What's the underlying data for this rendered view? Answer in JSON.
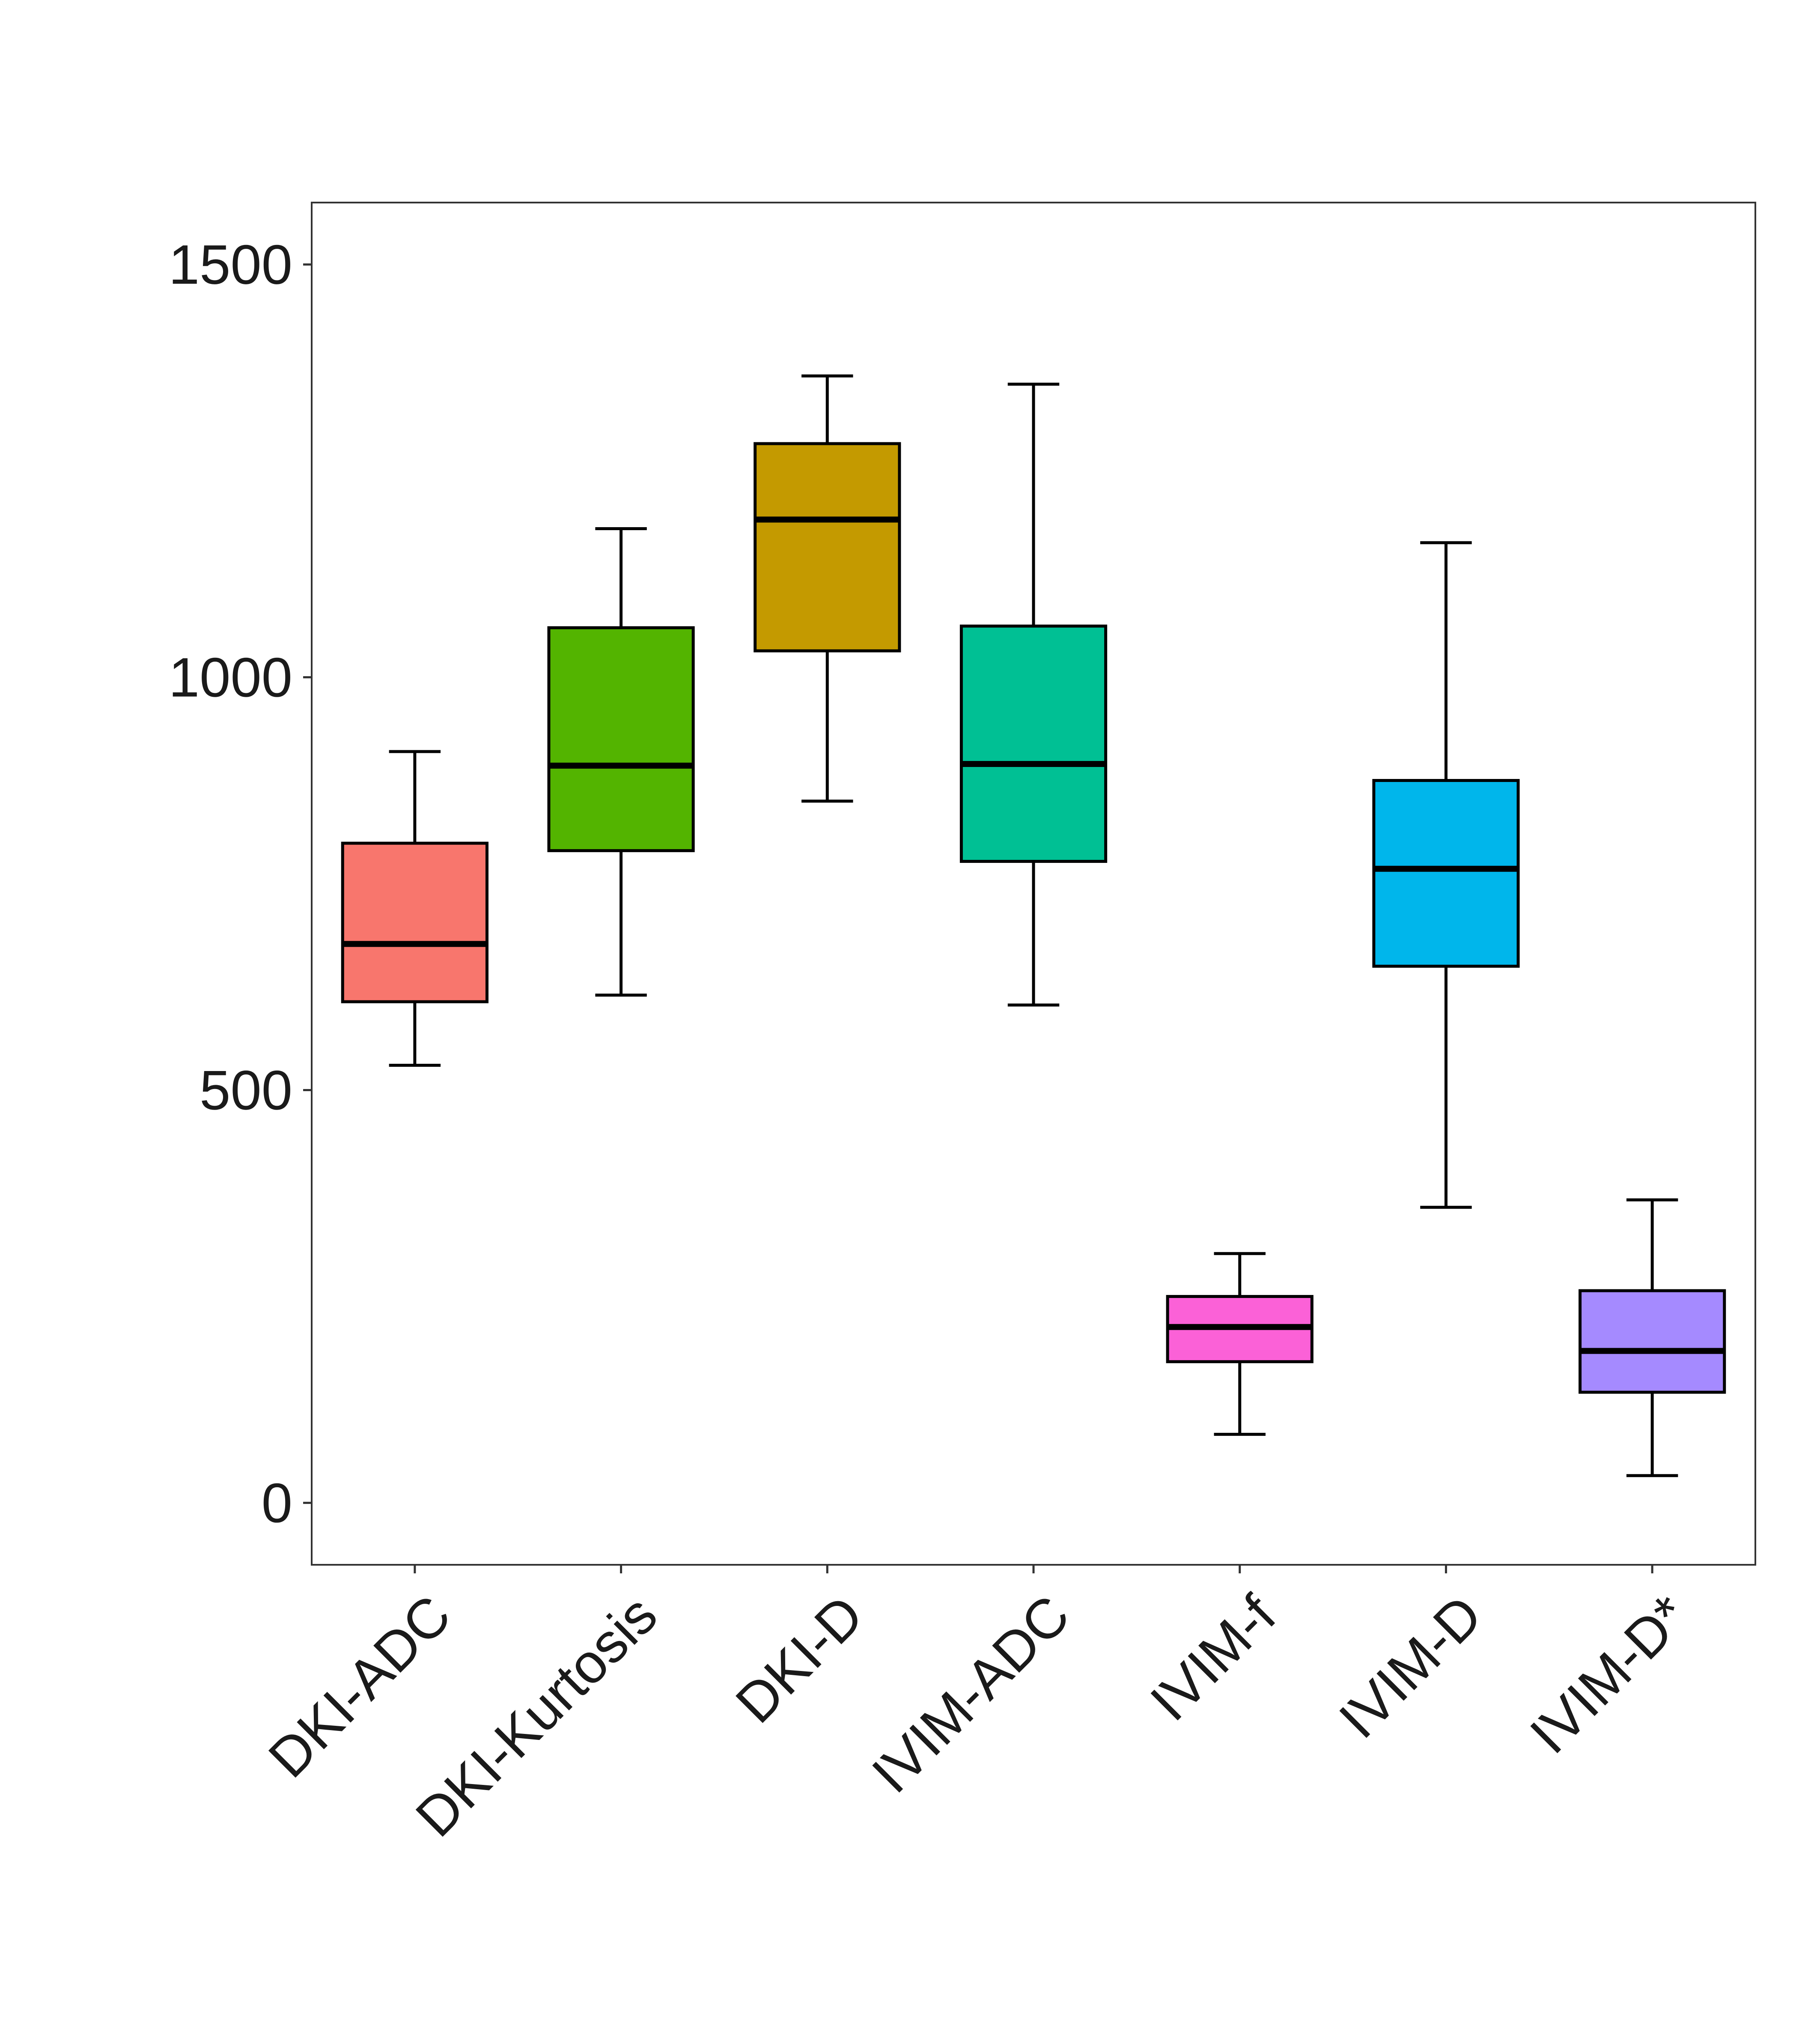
{
  "chart_data": {
    "type": "boxplot",
    "title": "",
    "xlabel": "",
    "ylabel": "",
    "ylim": [
      -75,
      1575
    ],
    "y_ticks": [
      0,
      500,
      1000,
      1500
    ],
    "y_tick_labels": [
      "0",
      "500",
      "1000",
      "1500"
    ],
    "grid": false,
    "legend": "none",
    "categories": [
      "DKI-ADC",
      "DKI-Kurtosis",
      "DKI-D",
      "IVIM-ADC",
      "IVIM-f",
      "IVIM-D",
      "IVIM-D*"
    ],
    "boxes": [
      {
        "name": "DKI-ADC",
        "whisker_low": 530,
        "q1": 607,
        "median": 677,
        "q3": 799,
        "whisker_high": 910,
        "color": "#F8766D"
      },
      {
        "name": "DKI-Kurtosis",
        "whisker_low": 615,
        "q1": 790,
        "median": 893,
        "q3": 1060,
        "whisker_high": 1180,
        "color": "#53B400"
      },
      {
        "name": "DKI-D",
        "whisker_low": 850,
        "q1": 1032,
        "median": 1191,
        "q3": 1283,
        "whisker_high": 1365,
        "color": "#C49A00"
      },
      {
        "name": "IVIM-ADC",
        "whisker_low": 603,
        "q1": 777,
        "median": 895,
        "q3": 1062,
        "whisker_high": 1355,
        "color": "#00C094"
      },
      {
        "name": "IVIM-f",
        "whisker_low": 83,
        "q1": 171,
        "median": 213,
        "q3": 250,
        "whisker_high": 302,
        "color": "#FB61D7"
      },
      {
        "name": "IVIM-D",
        "whisker_low": 358,
        "q1": 650,
        "median": 768,
        "q3": 875,
        "whisker_high": 1163,
        "color": "#00B6EB"
      },
      {
        "name": "IVIM-D*",
        "whisker_low": 33,
        "q1": 134,
        "median": 184,
        "q3": 257,
        "whisker_high": 367,
        "color": "#A58AFF"
      }
    ]
  }
}
